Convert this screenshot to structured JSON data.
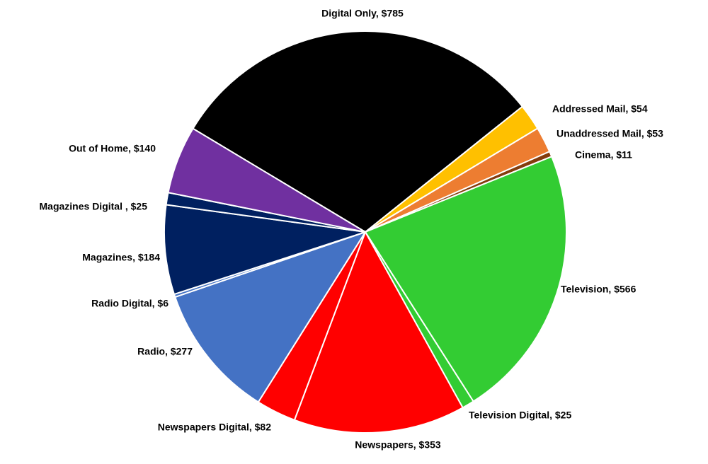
{
  "chart_data": {
    "type": "pie",
    "labels": [
      "Digital  Only, $785",
      "Addressed Mail, $54",
      "Unaddressed Mail, $53",
      "Cinema, $11",
      "Television, $566",
      "Television Digital, $25",
      "Newspapers, $353",
      "Newspapers Digital, $82",
      "Radio, $277",
      "Radio Digital, $6",
      "Magazines, $184",
      "Magazines Digital , $25",
      "Out of Home, $140"
    ],
    "values": [
      785,
      54,
      53,
      11,
      566,
      25,
      353,
      82,
      277,
      6,
      184,
      25,
      140
    ],
    "colors": [
      "#000000",
      "#ffc000",
      "#ed7d31",
      "#843c0c",
      "#33cc33",
      "#33cc33",
      "#ff0000",
      "#ff0000",
      "#4472c4",
      "#4472c4",
      "#002060",
      "#002060",
      "#7030a0"
    ]
  }
}
